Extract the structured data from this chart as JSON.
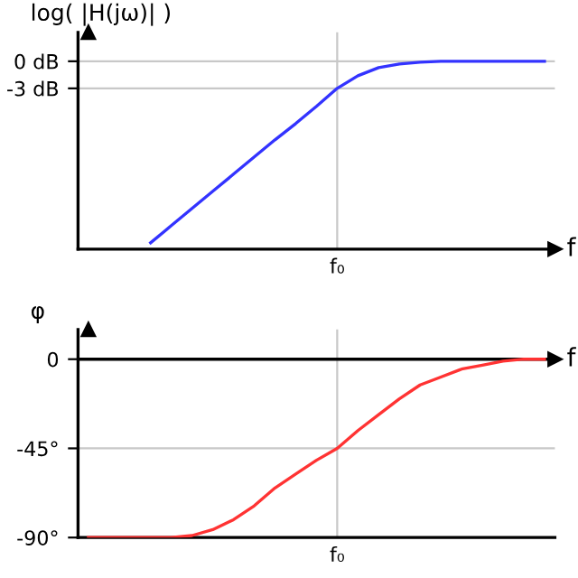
{
  "chart_data": [
    {
      "type": "line",
      "ylabel": "log( |H(jω)| )",
      "xlabel": "f",
      "categories": [
        null,
        null,
        null,
        null,
        null,
        null,
        null,
        null,
        null,
        null,
        null,
        null,
        "f₀",
        null,
        null,
        null,
        null,
        null,
        null,
        null,
        null,
        null,
        null
      ],
      "series": [
        {
          "color": "#3333ff",
          "values": [
            null,
            null,
            null,
            -20.1,
            -18.2,
            -16.3,
            -14.4,
            -12.5,
            -10.6,
            -8.7,
            -6.9,
            -5.0,
            -3,
            -1.6,
            -0.7,
            -0.3,
            -0.1,
            0,
            0,
            0,
            0,
            0,
            0
          ]
        }
      ],
      "ylim": [
        -20.8,
        3.2
      ],
      "yticks": [
        {
          "value": 0,
          "label": "0 dB"
        },
        {
          "value": -3,
          "label": "-3 dB"
        }
      ],
      "grid": true
    },
    {
      "type": "line",
      "ylabel": "φ",
      "xlabel": "f",
      "categories": [
        null,
        null,
        null,
        null,
        null,
        null,
        null,
        null,
        null,
        null,
        null,
        null,
        "f₀",
        null,
        null,
        null,
        null,
        null,
        null,
        null,
        null,
        null,
        null
      ],
      "series": [
        {
          "color": "#ff3333",
          "values": [
            -90,
            -90,
            -90,
            -90,
            -90,
            -89,
            -86,
            -81,
            -74,
            -65,
            -58,
            -51,
            -45,
            -36,
            -28,
            -20,
            -13,
            -9,
            -5,
            -3,
            -1,
            0,
            0
          ]
        }
      ],
      "ylim": [
        -90,
        15
      ],
      "yticks": [
        {
          "value": 0,
          "label": "0"
        },
        {
          "value": -45,
          "label": "-45°"
        },
        {
          "value": -90,
          "label": "-90°"
        }
      ],
      "grid": true,
      "ref_lines": [
        {
          "axis": "y",
          "value": 0,
          "color": "#000000"
        }
      ]
    }
  ]
}
